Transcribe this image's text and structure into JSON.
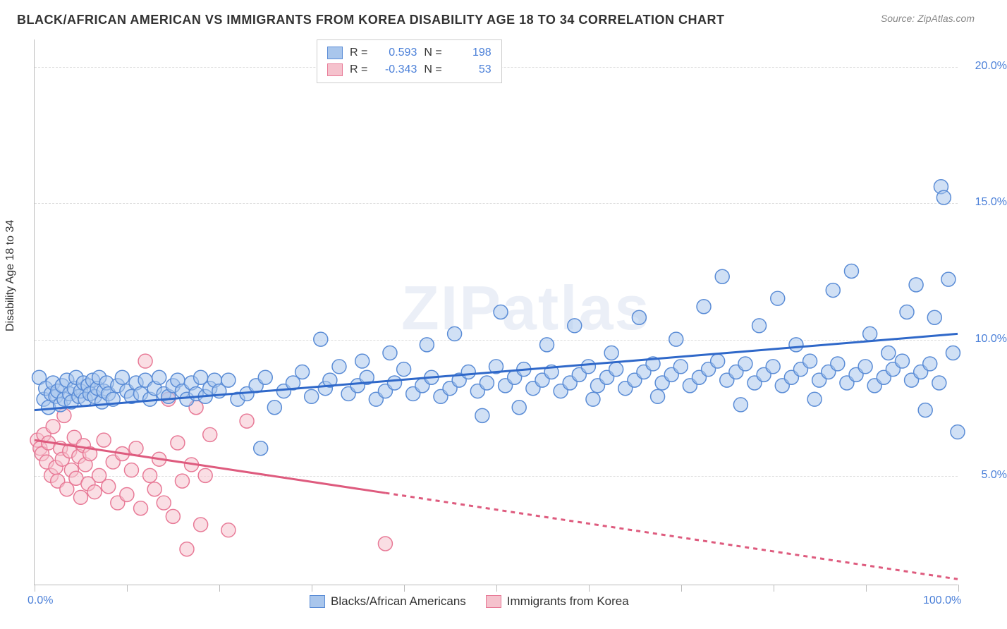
{
  "header": {
    "title": "BLACK/AFRICAN AMERICAN VS IMMIGRANTS FROM KOREA DISABILITY AGE 18 TO 34 CORRELATION CHART",
    "source": "Source: ZipAtlas.com"
  },
  "ylabel": "Disability Age 18 to 34",
  "watermark": "ZIPatlas",
  "chart": {
    "type": "scatter",
    "xlim": [
      0,
      100
    ],
    "ylim": [
      1,
      21
    ],
    "background_color": "#ffffff",
    "grid_color": "#dddddd",
    "axis_color": "#bbbbbb",
    "yticks": [
      {
        "value": 5,
        "label": "5.0%"
      },
      {
        "value": 10,
        "label": "10.0%"
      },
      {
        "value": 15,
        "label": "15.0%"
      },
      {
        "value": 20,
        "label": "20.0%"
      }
    ],
    "xticks_major": [
      0,
      20,
      40,
      60,
      80,
      100
    ],
    "xticks_minor": [
      10,
      30,
      50,
      70,
      90
    ],
    "xtick_labels": [
      {
        "value": 0,
        "label": "0.0%"
      },
      {
        "value": 100,
        "label": "100.0%"
      }
    ],
    "marker_radius": 10,
    "marker_opacity": 0.55,
    "marker_stroke_width": 1.5,
    "trend_line_width": 3,
    "trend_dash": "6,6"
  },
  "series": {
    "blue": {
      "label": "Blacks/African Americans",
      "fill_color": "#a9c6ec",
      "stroke_color": "#5a8cd6",
      "line_color": "#2f68c9",
      "r": "0.593",
      "n": "198",
      "trend": {
        "x1": 0,
        "y1": 7.4,
        "x2": 100,
        "y2": 10.2,
        "solid_until_x": 100
      },
      "points": [
        [
          0.5,
          8.6
        ],
        [
          1.0,
          7.8
        ],
        [
          1.2,
          8.2
        ],
        [
          1.5,
          7.5
        ],
        [
          1.8,
          8.0
        ],
        [
          2.0,
          8.4
        ],
        [
          2.3,
          7.9
        ],
        [
          2.5,
          8.1
        ],
        [
          2.8,
          7.6
        ],
        [
          3.0,
          8.3
        ],
        [
          3.2,
          7.8
        ],
        [
          3.5,
          8.5
        ],
        [
          3.8,
          8.0
        ],
        [
          4.0,
          7.7
        ],
        [
          4.3,
          8.2
        ],
        [
          4.5,
          8.6
        ],
        [
          4.8,
          7.9
        ],
        [
          5.0,
          8.1
        ],
        [
          5.3,
          8.4
        ],
        [
          5.5,
          7.8
        ],
        [
          5.8,
          8.3
        ],
        [
          6.0,
          8.0
        ],
        [
          6.3,
          8.5
        ],
        [
          6.5,
          7.9
        ],
        [
          6.8,
          8.2
        ],
        [
          7.0,
          8.6
        ],
        [
          7.3,
          7.7
        ],
        [
          7.5,
          8.1
        ],
        [
          7.8,
          8.4
        ],
        [
          8.0,
          8.0
        ],
        [
          8.5,
          7.8
        ],
        [
          9.0,
          8.3
        ],
        [
          9.5,
          8.6
        ],
        [
          10.0,
          8.1
        ],
        [
          10.5,
          7.9
        ],
        [
          11.0,
          8.4
        ],
        [
          11.5,
          8.0
        ],
        [
          12.0,
          8.5
        ],
        [
          12.5,
          7.8
        ],
        [
          13.0,
          8.2
        ],
        [
          13.5,
          8.6
        ],
        [
          14.0,
          8.0
        ],
        [
          14.5,
          7.9
        ],
        [
          15.0,
          8.3
        ],
        [
          15.5,
          8.5
        ],
        [
          16.0,
          8.1
        ],
        [
          16.5,
          7.8
        ],
        [
          17.0,
          8.4
        ],
        [
          17.5,
          8.0
        ],
        [
          18.0,
          8.6
        ],
        [
          18.5,
          7.9
        ],
        [
          19.0,
          8.2
        ],
        [
          19.5,
          8.5
        ],
        [
          20.0,
          8.1
        ],
        [
          21.0,
          8.5
        ],
        [
          22.0,
          7.8
        ],
        [
          23.0,
          8.0
        ],
        [
          24.0,
          8.3
        ],
        [
          24.5,
          6.0
        ],
        [
          25.0,
          8.6
        ],
        [
          26.0,
          7.5
        ],
        [
          27.0,
          8.1
        ],
        [
          28.0,
          8.4
        ],
        [
          29.0,
          8.8
        ],
        [
          30.0,
          7.9
        ],
        [
          31.0,
          10.0
        ],
        [
          31.5,
          8.2
        ],
        [
          32.0,
          8.5
        ],
        [
          33.0,
          9.0
        ],
        [
          34.0,
          8.0
        ],
        [
          35.0,
          8.3
        ],
        [
          35.5,
          9.2
        ],
        [
          36.0,
          8.6
        ],
        [
          37.0,
          7.8
        ],
        [
          38.0,
          8.1
        ],
        [
          38.5,
          9.5
        ],
        [
          39.0,
          8.4
        ],
        [
          40.0,
          8.9
        ],
        [
          41.0,
          8.0
        ],
        [
          42.0,
          8.3
        ],
        [
          42.5,
          9.8
        ],
        [
          43.0,
          8.6
        ],
        [
          44.0,
          7.9
        ],
        [
          45.0,
          8.2
        ],
        [
          45.5,
          10.2
        ],
        [
          46.0,
          8.5
        ],
        [
          47.0,
          8.8
        ],
        [
          48.0,
          8.1
        ],
        [
          48.5,
          7.2
        ],
        [
          49.0,
          8.4
        ],
        [
          50.0,
          9.0
        ],
        [
          50.5,
          11.0
        ],
        [
          51.0,
          8.3
        ],
        [
          52.0,
          8.6
        ],
        [
          52.5,
          7.5
        ],
        [
          53.0,
          8.9
        ],
        [
          54.0,
          8.2
        ],
        [
          55.0,
          8.5
        ],
        [
          55.5,
          9.8
        ],
        [
          56.0,
          8.8
        ],
        [
          57.0,
          8.1
        ],
        [
          58.0,
          8.4
        ],
        [
          58.5,
          10.5
        ],
        [
          59.0,
          8.7
        ],
        [
          60.0,
          9.0
        ],
        [
          60.5,
          7.8
        ],
        [
          61.0,
          8.3
        ],
        [
          62.0,
          8.6
        ],
        [
          62.5,
          9.5
        ],
        [
          63.0,
          8.9
        ],
        [
          64.0,
          8.2
        ],
        [
          65.0,
          8.5
        ],
        [
          65.5,
          10.8
        ],
        [
          66.0,
          8.8
        ],
        [
          67.0,
          9.1
        ],
        [
          67.5,
          7.9
        ],
        [
          68.0,
          8.4
        ],
        [
          69.0,
          8.7
        ],
        [
          69.5,
          10.0
        ],
        [
          70.0,
          9.0
        ],
        [
          71.0,
          8.3
        ],
        [
          72.0,
          8.6
        ],
        [
          72.5,
          11.2
        ],
        [
          73.0,
          8.9
        ],
        [
          74.0,
          9.2
        ],
        [
          74.5,
          12.3
        ],
        [
          75.0,
          8.5
        ],
        [
          76.0,
          8.8
        ],
        [
          76.5,
          7.6
        ],
        [
          77.0,
          9.1
        ],
        [
          78.0,
          8.4
        ],
        [
          78.5,
          10.5
        ],
        [
          79.0,
          8.7
        ],
        [
          80.0,
          9.0
        ],
        [
          80.5,
          11.5
        ],
        [
          81.0,
          8.3
        ],
        [
          82.0,
          8.6
        ],
        [
          82.5,
          9.8
        ],
        [
          83.0,
          8.9
        ],
        [
          84.0,
          9.2
        ],
        [
          84.5,
          7.8
        ],
        [
          85.0,
          8.5
        ],
        [
          86.0,
          8.8
        ],
        [
          86.5,
          11.8
        ],
        [
          87.0,
          9.1
        ],
        [
          88.0,
          8.4
        ],
        [
          88.5,
          12.5
        ],
        [
          89.0,
          8.7
        ],
        [
          90.0,
          9.0
        ],
        [
          90.5,
          10.2
        ],
        [
          91.0,
          8.3
        ],
        [
          92.0,
          8.6
        ],
        [
          92.5,
          9.5
        ],
        [
          93.0,
          8.9
        ],
        [
          94.0,
          9.2
        ],
        [
          94.5,
          11.0
        ],
        [
          95.0,
          8.5
        ],
        [
          95.5,
          12.0
        ],
        [
          96.0,
          8.8
        ],
        [
          96.5,
          7.4
        ],
        [
          97.0,
          9.1
        ],
        [
          97.5,
          10.8
        ],
        [
          98.0,
          8.4
        ],
        [
          98.2,
          15.6
        ],
        [
          98.5,
          15.2
        ],
        [
          99.0,
          12.2
        ],
        [
          99.5,
          9.5
        ],
        [
          100.0,
          6.6
        ]
      ]
    },
    "pink": {
      "label": "Immigrants from Korea",
      "fill_color": "#f5c2cd",
      "stroke_color": "#e87a97",
      "line_color": "#de5b7e",
      "r": "-0.343",
      "n": "53",
      "trend": {
        "x1": 0,
        "y1": 6.3,
        "x2": 100,
        "y2": 1.2,
        "solid_until_x": 38
      },
      "points": [
        [
          0.3,
          6.3
        ],
        [
          0.6,
          6.0
        ],
        [
          0.8,
          5.8
        ],
        [
          1.0,
          6.5
        ],
        [
          1.3,
          5.5
        ],
        [
          1.5,
          6.2
        ],
        [
          1.8,
          5.0
        ],
        [
          2.0,
          6.8
        ],
        [
          2.3,
          5.3
        ],
        [
          2.5,
          4.8
        ],
        [
          2.8,
          6.0
        ],
        [
          3.0,
          5.6
        ],
        [
          3.2,
          7.2
        ],
        [
          3.5,
          4.5
        ],
        [
          3.8,
          5.9
        ],
        [
          4.0,
          5.2
        ],
        [
          4.3,
          6.4
        ],
        [
          4.5,
          4.9
        ],
        [
          4.8,
          5.7
        ],
        [
          5.0,
          4.2
        ],
        [
          5.3,
          6.1
        ],
        [
          5.5,
          5.4
        ],
        [
          5.8,
          4.7
        ],
        [
          6.0,
          5.8
        ],
        [
          6.5,
          4.4
        ],
        [
          7.0,
          5.0
        ],
        [
          7.5,
          6.3
        ],
        [
          8.0,
          4.6
        ],
        [
          8.5,
          5.5
        ],
        [
          9.0,
          4.0
        ],
        [
          9.5,
          5.8
        ],
        [
          10.0,
          4.3
        ],
        [
          10.5,
          5.2
        ],
        [
          11.0,
          6.0
        ],
        [
          11.5,
          3.8
        ],
        [
          12.0,
          9.2
        ],
        [
          12.5,
          5.0
        ],
        [
          13.0,
          4.5
        ],
        [
          13.5,
          5.6
        ],
        [
          14.0,
          4.0
        ],
        [
          14.5,
          7.8
        ],
        [
          15.0,
          3.5
        ],
        [
          15.5,
          6.2
        ],
        [
          16.0,
          4.8
        ],
        [
          16.5,
          2.3
        ],
        [
          17.0,
          5.4
        ],
        [
          17.5,
          7.5
        ],
        [
          18.0,
          3.2
        ],
        [
          18.5,
          5.0
        ],
        [
          19.0,
          6.5
        ],
        [
          21.0,
          3.0
        ],
        [
          23.0,
          7.0
        ],
        [
          38.0,
          2.5
        ]
      ]
    }
  },
  "legend_top": {
    "r_label": "R =",
    "n_label": "N ="
  },
  "legend_bottom": {
    "blue_label": "Blacks/African Americans",
    "pink_label": "Immigrants from Korea"
  }
}
